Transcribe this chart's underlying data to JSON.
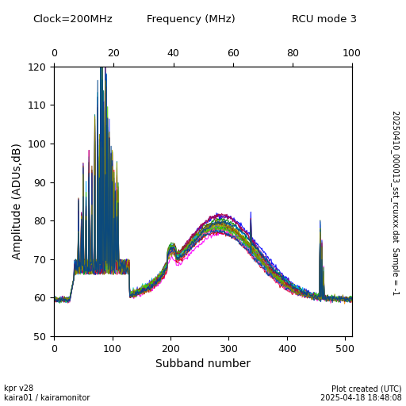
{
  "title_top_left": "Clock=200MHz",
  "title_top_center": "Frequency (MHz)",
  "title_top_right": "RCU mode 3",
  "xlabel": "Subband number",
  "ylabel": "Amplitude (ADUs,dB)",
  "right_label": "20250410_000013_sst_rcuxxx.dat  Sample = -1",
  "bottom_left": "kpr v28\nkaira01 / kairamonitor",
  "bottom_right": "Plot created (UTC)\n2025-04-18 18:48:08",
  "xlim": [
    0,
    512
  ],
  "ylim": [
    50,
    120
  ],
  "subband_ticks": [
    0,
    100,
    200,
    300,
    400,
    500
  ],
  "freq_ticks": [
    0,
    20,
    40,
    60,
    80,
    100
  ],
  "freq_tick_subbands": [
    0,
    102.4,
    204.8,
    307.2,
    409.6,
    512.0
  ],
  "yticks": [
    50,
    60,
    70,
    80,
    90,
    100,
    110,
    120
  ],
  "n_lines": 20,
  "bg_color": "white",
  "line_colors": [
    "#ff00ff",
    "#00cccc",
    "#ff0000",
    "#008800",
    "#0000ff",
    "#ff8800",
    "#880088",
    "#008888",
    "#cc0000",
    "#4444ff",
    "#00aa00",
    "#aaaa00",
    "#ff44aa",
    "#00aaff",
    "#884400",
    "#44cc00",
    "#aa0044",
    "#0044aa",
    "#888800",
    "#004488"
  ]
}
